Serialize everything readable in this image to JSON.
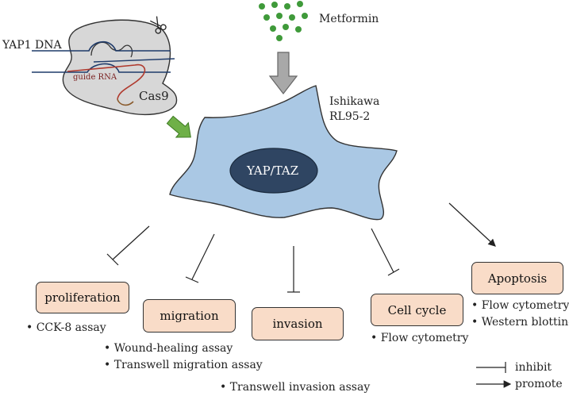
{
  "labels": {
    "yap1_dna": "YAP1 DNA",
    "guide_rna": "guide RNA",
    "cas9": "Cas9",
    "metformin": "Metformin",
    "cell_line_1": "Ishikawa",
    "cell_line_2": "RL95-2",
    "nucleus": "YAP/TAZ"
  },
  "outcomes": {
    "proliferation": {
      "label": "proliferation",
      "assays": [
        "CCK-8 assay"
      ]
    },
    "migration": {
      "label": "migration",
      "assays": [
        "Wound-healing assay",
        "Transwell migration assay"
      ]
    },
    "invasion": {
      "label": "invasion",
      "assays": [
        "Transwell invasion assay"
      ]
    },
    "cell_cycle": {
      "label": "Cell cycle",
      "assays": [
        "Flow cytometry"
      ]
    },
    "apoptosis": {
      "label": "Apoptosis",
      "assays": [
        "Flow cytometry",
        "Western blotting"
      ]
    }
  },
  "legend": {
    "inhibit": "inhibit",
    "promote": "promote"
  },
  "colors": {
    "cell_fill": "#aac8e4",
    "nucleus_fill": "#2f4562",
    "box_fill": "#f9dcc8",
    "cas9_fill": "#d7d7d7",
    "dna_line": "#1f3b6a",
    "guide_rna": "#b03a2e",
    "green_arrow": "#6fb048",
    "metformin_dot": "#3f9a3a",
    "grey_arrow": "#a8a8a8"
  }
}
